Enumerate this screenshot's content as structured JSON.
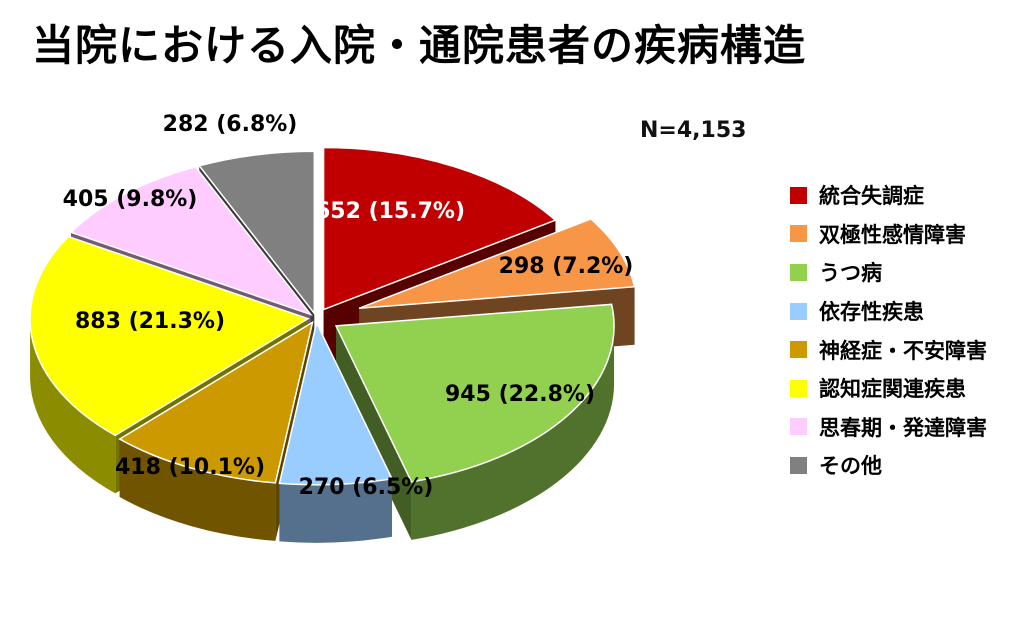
{
  "title": "当院における入院・通院患者の疾病構造",
  "n_label": "N=4,153",
  "chart_data": {
    "type": "pie",
    "title": "当院における入院・通院患者の疾病構造",
    "total_label": "N=4,153",
    "legend_position": "right",
    "slices": [
      {
        "name": "統合失調症",
        "value": 652,
        "percent": 15.7,
        "label": "652 (15.7%)",
        "color": "#c00000"
      },
      {
        "name": "双極性感情障害",
        "value": 298,
        "percent": 7.2,
        "label": "298 (7.2%)",
        "color": "#f79646"
      },
      {
        "name": "うつ病",
        "value": 945,
        "percent": 22.8,
        "label": "945 (22.8%)",
        "color": "#92d050"
      },
      {
        "name": "依存性疾患",
        "value": 270,
        "percent": 6.5,
        "label": "270 (6.5%)",
        "color": "#99ccff"
      },
      {
        "name": "神経症・不安障害",
        "value": 418,
        "percent": 10.1,
        "label": "418 (10.1%)",
        "color": "#cc9900"
      },
      {
        "name": "認知症関連疾患",
        "value": 883,
        "percent": 21.3,
        "label": "883 (21.3%)",
        "color": "#ffff00"
      },
      {
        "name": "思春期・発達障害",
        "value": 405,
        "percent": 9.8,
        "label": "405 (9.8%)",
        "color": "#ffccff"
      },
      {
        "name": "その他",
        "value": 282,
        "percent": 6.8,
        "label": "282 (6.8%)",
        "color": "#808080"
      }
    ]
  }
}
